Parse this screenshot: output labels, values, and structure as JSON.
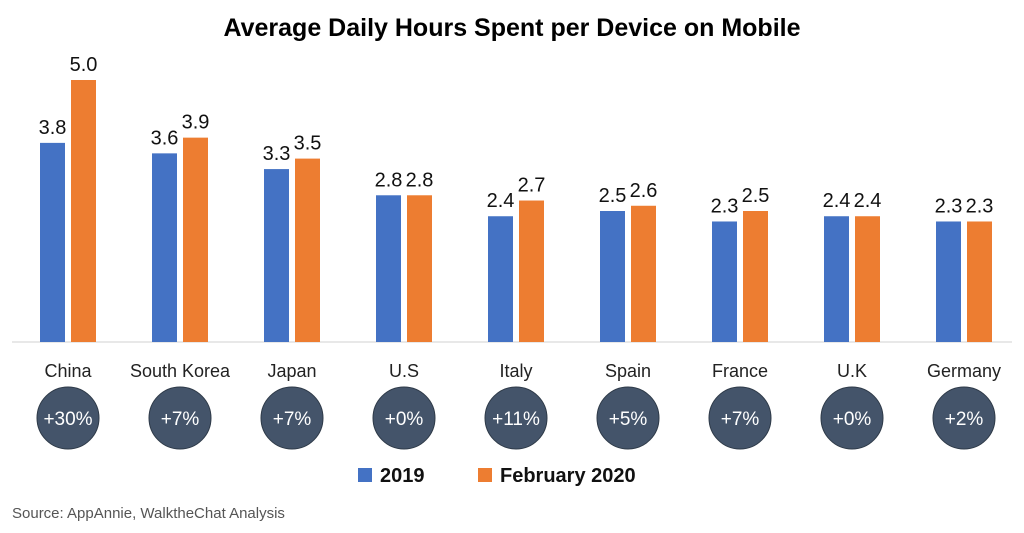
{
  "chart_data": {
    "type": "bar",
    "title": "Average Daily Hours Spent per Device on Mobile",
    "categories": [
      "China",
      "South Korea",
      "Japan",
      "U.S",
      "Italy",
      "Spain",
      "France",
      "U.K",
      "Germany"
    ],
    "series": [
      {
        "name": "2019",
        "color": "#4472C4",
        "values": [
          3.8,
          3.6,
          3.3,
          2.8,
          2.4,
          2.5,
          2.3,
          2.4,
          2.3
        ],
        "labels": [
          "3.8",
          "3.6",
          "3.3",
          "2.8",
          "2.4",
          "2.5",
          "2.3",
          "2.4",
          "2.3"
        ]
      },
      {
        "name": "February 2020",
        "color": "#ED7D31",
        "values": [
          5.0,
          3.9,
          3.5,
          2.8,
          2.7,
          2.6,
          2.5,
          2.4,
          2.3
        ],
        "labels": [
          "5.0",
          "3.9",
          "3.5",
          "2.8",
          "2.7",
          "2.6",
          "2.5",
          "2.4",
          "2.3"
        ]
      }
    ],
    "growth": [
      "+30%",
      "+7%",
      "+7%",
      "+0%",
      "+11%",
      "+5%",
      "+7%",
      "+0%",
      "+2%"
    ],
    "ylim": [
      0,
      5
    ],
    "grid": false,
    "legend": "bottom-center"
  },
  "colors": {
    "badge": "#44546A",
    "axis": "#d0d0d0"
  },
  "source": "Source: AppAnnie, WalktheChat Analysis"
}
